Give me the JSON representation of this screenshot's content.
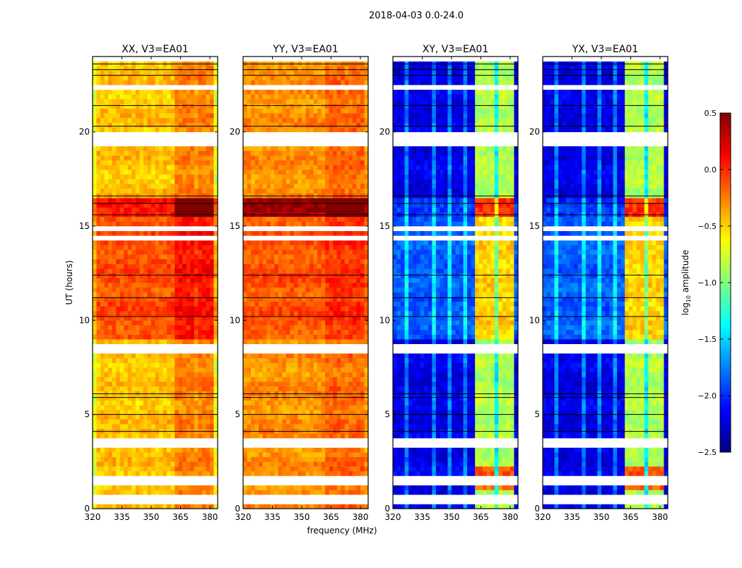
{
  "chart_data": {
    "type": "heatmap",
    "title": "2018-04-03 0.0-24.0",
    "xlabel": "frequency (MHz)",
    "ylabel": "UT (hours)",
    "xlim": [
      320,
      384
    ],
    "ylim": [
      0,
      24
    ],
    "xticks": [
      320,
      335,
      350,
      365,
      380
    ],
    "yticks": [
      0,
      5,
      10,
      15,
      20
    ],
    "colorbar": {
      "label_main": "log",
      "label_sub": "10",
      "label_rest": " amplitude",
      "range": [
        -2.5,
        0.5
      ],
      "ticks": [
        "0.5",
        "0.0",
        "−0.5",
        "−1.0",
        "−1.5",
        "−2.0",
        "−2.5"
      ],
      "tick_values": [
        0.5,
        0.0,
        -0.5,
        -1.0,
        -1.5,
        -2.0,
        -2.5
      ],
      "colormap": "jet"
    },
    "bins": {
      "freq_step_mhz": 2,
      "time_step_hours": 0.25
    },
    "flagged_time_ranges_hours": [
      [
        19.4,
        19.85
      ],
      [
        8.35,
        8.7
      ],
      [
        0.45,
        0.55
      ],
      [
        0.6,
        0.65
      ],
      [
        1.45,
        1.55
      ],
      [
        3.25,
        3.35
      ],
      [
        3.6,
        3.7
      ],
      [
        14.35,
        14.45
      ],
      [
        14.85,
        14.95
      ],
      [
        22.4,
        22.5
      ],
      [
        23.8,
        23.9
      ]
    ],
    "black_line_times_hours": [
      4.1,
      5.0,
      5.9,
      6.1,
      10.2,
      11.2,
      12.4,
      15.6,
      16.2,
      16.6,
      20.3,
      21.4,
      23.0,
      23.3,
      23.6
    ],
    "band_columns_mhz": [
      [
        363,
        367.5
      ],
      [
        368.5,
        372.5
      ],
      [
        373.5,
        377.5
      ],
      [
        378.5,
        381
      ]
    ],
    "panels": [
      {
        "title": "XX, V3=EA01",
        "base": -0.45,
        "mid_level": -0.1,
        "burst_level": 0.1,
        "band_offset": 0.2,
        "stripe_mhz": [],
        "stripe_offset": 0
      },
      {
        "title": "YY, V3=EA01",
        "base": -0.3,
        "mid_level": -0.12,
        "burst_level": 0.4,
        "band_offset": 0.12,
        "stripe_mhz": [],
        "stripe_offset": 0
      },
      {
        "title": "XY, V3=EA01",
        "base": -2.2,
        "mid_level": -1.85,
        "burst_level": -2.0,
        "band_offset": 1.35,
        "stripe_mhz": [
          327,
          341,
          349,
          357
        ],
        "stripe_offset": 0.45
      },
      {
        "title": "YX, V3=EA01",
        "base": -2.2,
        "mid_level": -1.85,
        "burst_level": -2.0,
        "band_offset": 1.35,
        "stripe_mhz": [
          327,
          341,
          349,
          357
        ],
        "stripe_offset": 0.45
      }
    ]
  }
}
